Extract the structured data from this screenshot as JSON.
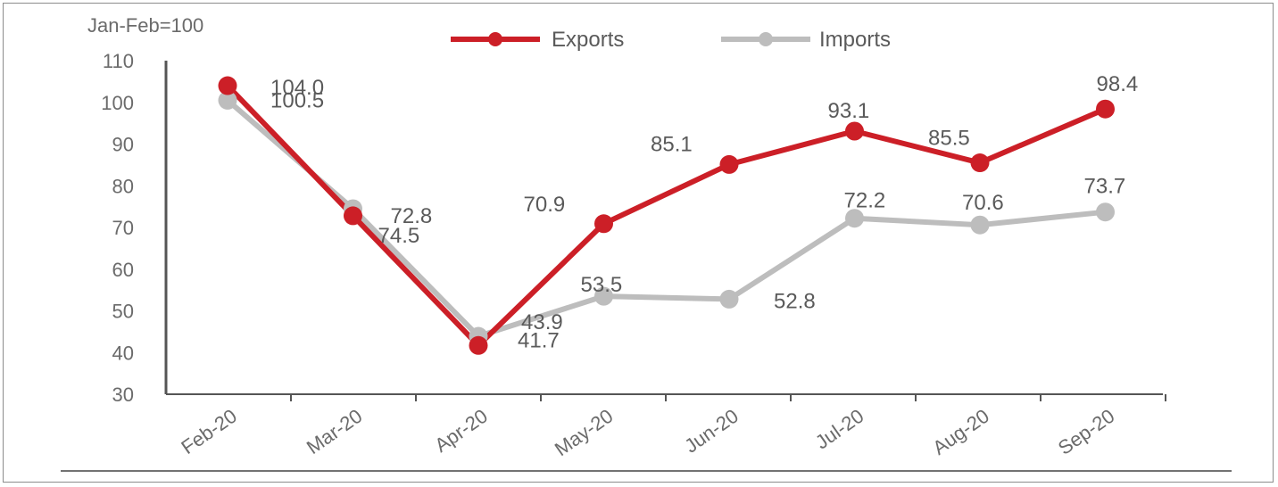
{
  "chart_data": {
    "type": "line",
    "unit_label": "Jan-Feb=100",
    "categories": [
      "Feb-20",
      "Mar-20",
      "Apr-20",
      "May-20",
      "Jun-20",
      "Jul-20",
      "Aug-20",
      "Sep-20"
    ],
    "series": [
      {
        "name": "Exports",
        "color": "#cc1f27",
        "values": [
          104.0,
          72.8,
          41.7,
          70.9,
          85.1,
          93.1,
          85.5,
          98.4
        ],
        "labels": [
          "104.0",
          "72.8",
          "41.7",
          "70.9",
          "85.1",
          "93.1",
          "85.5",
          "98.4"
        ]
      },
      {
        "name": "Imports",
        "color": "#bdbdbd",
        "values": [
          100.5,
          74.5,
          43.9,
          53.5,
          52.8,
          72.2,
          70.6,
          73.7
        ],
        "labels": [
          "100.5",
          "74.5",
          "43.9",
          "53.5",
          "52.8",
          "72.2",
          "70.6",
          "73.7"
        ]
      }
    ],
    "ylim": [
      30,
      110
    ],
    "yticks": [
      "30",
      "40",
      "50",
      "60",
      "70",
      "80",
      "90",
      "100",
      "110"
    ],
    "grid": false,
    "legend_position": "top"
  }
}
